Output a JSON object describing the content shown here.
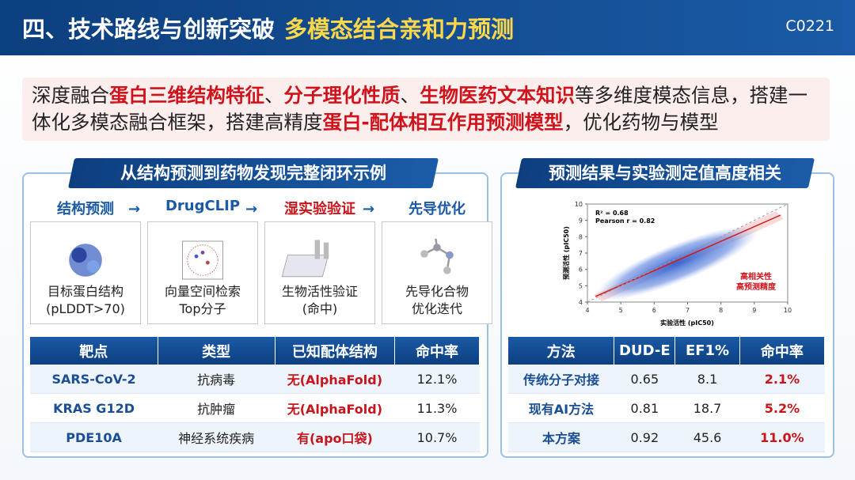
{
  "header": {
    "title_main": "四、技术路线与创新突破",
    "title_highlight": "多模态结合亲和力预测",
    "code": "C0221"
  },
  "intro": {
    "segments": [
      {
        "text": "深度融合",
        "emphasis": false
      },
      {
        "text": "蛋白三维结构特征",
        "emphasis": true
      },
      {
        "text": "、",
        "emphasis": false
      },
      {
        "text": "分子理化性质",
        "emphasis": true
      },
      {
        "text": "、",
        "emphasis": false
      },
      {
        "text": "生物医药文本知识",
        "emphasis": true
      },
      {
        "text": "等多维度模态信息，搭建一体化多模态融合框架，搭建高精度",
        "emphasis": false
      },
      {
        "text": "蛋白-配体相互作用预测模型",
        "emphasis": true
      },
      {
        "text": "，优化药物与模型",
        "emphasis": false
      }
    ]
  },
  "left_panel": {
    "banner": "从结构预测到药物发现完整闭环示例",
    "steps": [
      {
        "title": "结构预测",
        "emphasis": false,
        "caption": [
          "目标蛋白结构",
          "(pLDDT>70)"
        ]
      },
      {
        "title": "DrugCLIP",
        "emphasis": false,
        "caption": [
          "向量空间检索",
          "Top分子"
        ]
      },
      {
        "title": "湿实验验证",
        "emphasis": true,
        "caption": [
          "生物活性验证",
          "(命中)"
        ]
      },
      {
        "title": "先导优化",
        "emphasis": false,
        "caption": [
          "先导化合物",
          "优化迭代"
        ]
      }
    ],
    "table": {
      "header": [
        "靶点",
        "类型",
        "已知配体结构",
        "命中率"
      ],
      "rows": [
        [
          "SARS-CoV-2",
          "抗病毒",
          "无(AlphaFold)",
          "12.1%"
        ],
        [
          "KRAS G12D",
          "抗肿瘤",
          "无(AlphaFold)",
          "11.3%"
        ],
        [
          "PDE10A",
          "神经系统疾病",
          "有(apo口袋)",
          "10.7%"
        ]
      ]
    }
  },
  "right_panel": {
    "banner": "预测结果与实验测定值高度相关",
    "scatter": {
      "x_label": "实验活性 (pIC50)",
      "y_label": "预测活性 (pIC50)",
      "xlim": [
        4,
        10
      ],
      "ylim": [
        4,
        10
      ],
      "xticks": [
        4,
        5,
        6,
        7,
        8,
        9,
        10
      ],
      "yticks": [
        4,
        5,
        6,
        7,
        8,
        9,
        10
      ],
      "stats": [
        "R² = 0.68",
        "Pearson r = 0.82"
      ],
      "annotation": [
        "高相关性",
        "高预测精度"
      ]
    },
    "table": {
      "header": [
        "方法",
        "DUD-E",
        "EF1%",
        "命中率"
      ],
      "rows": [
        [
          "传统分子对接",
          "0.65",
          "8.1",
          "2.1%"
        ],
        [
          "现有AI方法",
          "0.81",
          "18.7",
          "5.2%"
        ],
        [
          "本方案",
          "0.92",
          "45.6",
          "11.0%"
        ]
      ]
    }
  }
}
